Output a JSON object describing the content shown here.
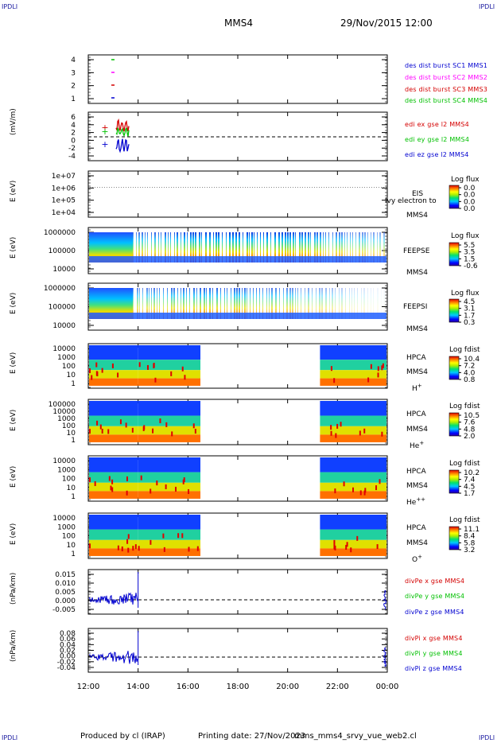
{
  "header": {
    "corner_tl": "IPDLI",
    "corner_tr": "IPDLI",
    "corner_bl": "IPDLI",
    "corner_br": "IPDLI",
    "spacecraft": "MMS4",
    "datetime": "29/Nov/2015 12:00"
  },
  "footer": {
    "produced": "Produced by cl (IRAP)",
    "printing": "Printing date: 27/Nov/2023",
    "file": "mms_mms4_srvy_vue_web2.cl"
  },
  "colors": {
    "red": "#d40000",
    "magenta": "#ff00ff",
    "green": "#00c000",
    "blue": "#0000d0"
  },
  "chart_data": [
    {
      "type": "scatter",
      "panel": "burst",
      "ylim": [
        0.5,
        4.5
      ],
      "yticks": [
        "4",
        "3",
        "2",
        "1"
      ],
      "legend": [
        "des dist burst SC1 MMS1",
        "des dist burst SC2 MMS2",
        "des dist burst SC3 MMS3",
        "des dist burst SC4 MMS4"
      ],
      "x": [
        "13:00"
      ],
      "series": [
        {
          "name": "des dist burst SC1 MMS1",
          "values": [
            1
          ]
        },
        {
          "name": "des dist burst SC2 MMS2",
          "values": [
            2
          ]
        },
        {
          "name": "des dist burst SC3 MMS3",
          "values": [
            3
          ]
        },
        {
          "name": "des dist burst SC4 MMS4",
          "values": [
            4
          ]
        }
      ]
    },
    {
      "type": "line",
      "panel": "edi",
      "ylabel": "(mV/m)",
      "ylim": [
        -5,
        6
      ],
      "yticks": [
        "6",
        "4",
        "2",
        "0",
        "-2",
        "-4"
      ],
      "legend": [
        "edi ex gse l2 MMS4",
        "edi ey gse l2 MMS4",
        "edi ez gse l2 MMS4"
      ]
    },
    {
      "type": "heatmap",
      "panel": "eis",
      "ylabel": "E (eV)",
      "yticks": [
        "1e+07",
        "1e+06",
        "1e+05",
        "1e+04"
      ],
      "name": "EIS",
      "sc": "MMS4",
      "overlay": "extof_proton",
      "note": "lvy electron to",
      "cbar_title": "Log flux",
      "cbar_ticks": [
        "0.0",
        "0.0",
        "0.0",
        "0.0"
      ]
    },
    {
      "type": "heatmap",
      "panel": "feepse",
      "ylabel": "E (eV)",
      "yticks": [
        "1000000",
        "100000",
        "10000"
      ],
      "name": "FEEPSE",
      "sc": "MMS4",
      "cbar_title": "Log flux",
      "cbar_ticks": [
        "5.5",
        "3.5",
        "1.5",
        "-0.6"
      ]
    },
    {
      "type": "heatmap",
      "panel": "feepsi",
      "ylabel": "E (eV)",
      "yticks": [
        "1000000",
        "100000",
        "10000"
      ],
      "name": "FEEPSI",
      "sc": "MMS4",
      "cbar_title": "Log flux",
      "cbar_ticks": [
        "4.5",
        "3.1",
        "1.7",
        "0.3"
      ]
    },
    {
      "type": "heatmap",
      "panel": "hpca_h",
      "ylabel": "E (eV)",
      "yticks": [
        "10000",
        "1000",
        "100",
        "10",
        "1"
      ],
      "name": "HPCA",
      "sc": "MMS4",
      "species": "H",
      "sup": "+",
      "cbar_title": "Log fdist",
      "cbar_ticks": [
        "10.4",
        "7.2",
        "4.0",
        "0.8"
      ]
    },
    {
      "type": "heatmap",
      "panel": "hpca_he",
      "ylabel": "E (eV)",
      "yticks": [
        "100000",
        "10000",
        "1000",
        "100",
        "10",
        "1"
      ],
      "name": "HPCA",
      "sc": "MMS4",
      "species": "He",
      "sup": "+",
      "cbar_title": "Log fdist",
      "cbar_ticks": [
        "10.5",
        "7.6",
        "4.8",
        "2.0"
      ]
    },
    {
      "type": "heatmap",
      "panel": "hpca_hepp",
      "ylabel": "E (eV)",
      "yticks": [
        "10000",
        "1000",
        "100",
        "10",
        "1"
      ],
      "name": "HPCA",
      "sc": "MMS4",
      "species": "He",
      "sup": "++",
      "cbar_title": "Log fdist",
      "cbar_ticks": [
        "10.2",
        "7.4",
        "4.5",
        "1.7"
      ]
    },
    {
      "type": "heatmap",
      "panel": "hpca_o",
      "ylabel": "E (eV)",
      "yticks": [
        "10000",
        "1000",
        "100",
        "10",
        "1"
      ],
      "name": "HPCA",
      "sc": "MMS4",
      "species": "O",
      "sup": "+",
      "cbar_title": "Log fdist",
      "cbar_ticks": [
        "11.1",
        "8.4",
        "5.8",
        "3.2"
      ]
    },
    {
      "type": "line",
      "panel": "divpe",
      "ylabel": "(nPa/km)",
      "ylim": [
        -0.0075,
        0.015
      ],
      "yticks": [
        "0.015",
        "0.010",
        "0.005",
        "0.000",
        "-0.005"
      ],
      "legend": [
        "divPe x gse MMS4",
        "divPe y gse MMS4",
        "divPe z gse MMS4"
      ]
    },
    {
      "type": "line",
      "panel": "divpi",
      "ylabel": "(nPa/km)",
      "ylim": [
        -0.05,
        0.09
      ],
      "yticks": [
        "0.08",
        "0.06",
        "0.04",
        "0.02",
        "0.00",
        "-0.02",
        "-0.04"
      ],
      "legend": [
        "divPi x gse MMS4",
        "divPi y gse MMS4",
        "divPi z gse MMS4"
      ]
    }
  ],
  "xaxis": {
    "ticks": [
      "12:00",
      "14:00",
      "16:00",
      "18:00",
      "20:00",
      "22:00",
      "00:00"
    ],
    "range_hours": [
      12,
      24
    ]
  }
}
